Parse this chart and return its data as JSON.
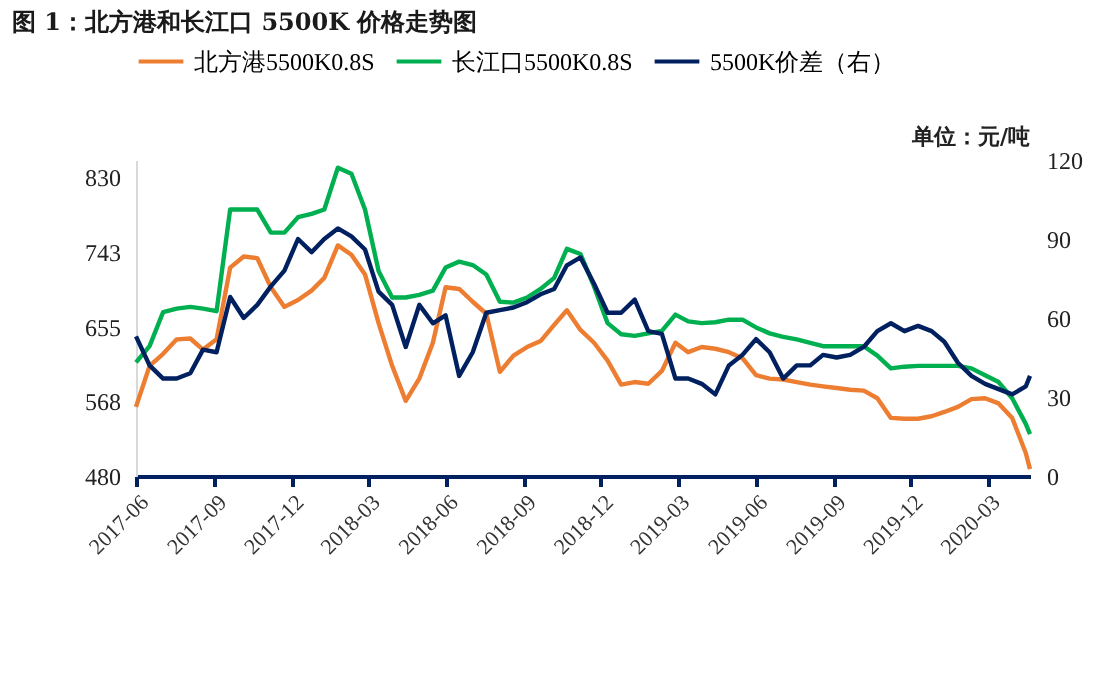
{
  "chart_data": {
    "type": "line",
    "title": "图 1：北方港和长江口 5500K 价格走势图",
    "annotations": [
      "单位：元/吨"
    ],
    "x": [
      "2017-06-01",
      "2017-06-17",
      "2017-07-03",
      "2017-07-19",
      "2017-08-04",
      "2017-08-19",
      "2017-09-04",
      "2017-09-20",
      "2017-10-06",
      "2017-10-22",
      "2017-11-07",
      "2017-11-23",
      "2017-12-09",
      "2017-12-25",
      "2018-01-09",
      "2018-01-25",
      "2018-02-10",
      "2018-02-26",
      "2018-03-14",
      "2018-03-30",
      "2018-04-15",
      "2018-05-01",
      "2018-05-17",
      "2018-06-01",
      "2018-06-17",
      "2018-07-03",
      "2018-07-19",
      "2018-08-04",
      "2018-08-20",
      "2018-09-05",
      "2018-09-21",
      "2018-10-07",
      "2018-10-22",
      "2018-11-07",
      "2018-11-23",
      "2018-12-09",
      "2018-12-25",
      "2019-01-10",
      "2019-01-26",
      "2019-02-11",
      "2019-02-27",
      "2019-03-14",
      "2019-03-30",
      "2019-04-15",
      "2019-05-01",
      "2019-05-17",
      "2019-06-02",
      "2019-06-18",
      "2019-07-04",
      "2019-07-20",
      "2019-08-05",
      "2019-08-20",
      "2019-09-05",
      "2019-09-21",
      "2019-10-07",
      "2019-10-23",
      "2019-11-08",
      "2019-11-24",
      "2019-12-10",
      "2019-12-26",
      "2020-01-10",
      "2020-01-26",
      "2020-02-11",
      "2020-02-27",
      "2020-03-14",
      "2020-03-30",
      "2020-04-15",
      "2020-04-20"
    ],
    "series": [
      {
        "name": "北方港5500K0.8S",
        "color": "#ed7d31",
        "values": [
          561,
          609,
          623,
          640,
          641,
          628,
          640,
          724,
          737,
          735,
          701,
          678,
          686,
          697,
          712,
          750,
          739,
          716,
          659,
          609,
          568,
          594,
          636,
          701,
          699,
          684,
          670,
          602,
          621,
          631,
          638,
          657,
          674,
          651,
          636,
          615,
          587,
          590,
          588,
          603,
          636,
          625,
          631,
          629,
          625,
          618,
          598,
          594,
          593,
          590,
          587,
          585,
          583,
          581,
          580,
          571,
          548,
          547,
          547,
          550,
          555,
          561,
          570,
          571,
          565,
          548,
          507,
          488
        ]
      },
      {
        "name": "长江口5500K0.8S",
        "color": "#00b050",
        "values": [
          613,
          632,
          672,
          676,
          678,
          676,
          673,
          792,
          792,
          792,
          765,
          765,
          783,
          787,
          792,
          841,
          834,
          792,
          720,
          689,
          689,
          692,
          697,
          724,
          731,
          727,
          716,
          684,
          683,
          689,
          699,
          712,
          746,
          740,
          702,
          659,
          646,
          644,
          647,
          650,
          669,
          661,
          659,
          660,
          663,
          663,
          654,
          647,
          643,
          640,
          636,
          632,
          632,
          632,
          632,
          621,
          606,
          608,
          609,
          609,
          609,
          609,
          606,
          598,
          590,
          571,
          541,
          529
        ]
      },
      {
        "name": "5500K价差（右）",
        "color": "#002060",
        "axis": "y2",
        "values": [
          53,
          42,
          37,
          37,
          39,
          48,
          47,
          68,
          60,
          65,
          72,
          78,
          90,
          85,
          90,
          94,
          91,
          86,
          70,
          65,
          49,
          65,
          58,
          61,
          38,
          47,
          62,
          63,
          64,
          66,
          69,
          71,
          80,
          83,
          73,
          62,
          62,
          67,
          55,
          54,
          37,
          37,
          35,
          31,
          42,
          46,
          52,
          47,
          37,
          42,
          42,
          46,
          45,
          46,
          49,
          55,
          58,
          55,
          57,
          55,
          51,
          43,
          38,
          35,
          33,
          31,
          34,
          38
        ]
      }
    ],
    "xlim": [
      "2017-06-01",
      "2020-04-20"
    ],
    "xticks": [
      "2017-06",
      "2017-09",
      "2017-12",
      "2018-03",
      "2018-06",
      "2018-09",
      "2018-12",
      "2019-03",
      "2019-06",
      "2019-09",
      "2019-12",
      "2020-03"
    ],
    "ylim": [
      480,
      850
    ],
    "yticks": [
      480,
      {
        "value": 567.5,
        "label": "568"
      },
      655,
      {
        "value": 742.5,
        "label": "743"
      },
      830
    ],
    "y2lim": [
      0,
      120
    ],
    "y2ticks": [
      0,
      30,
      60,
      90,
      120
    ],
    "grid": false,
    "legend": "top",
    "line_style": "solid",
    "marker": "none"
  }
}
